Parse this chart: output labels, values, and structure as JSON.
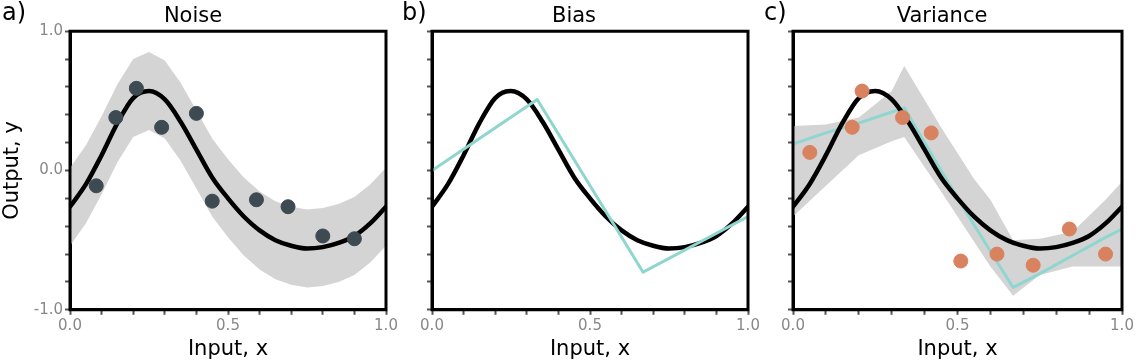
{
  "chart_data": [
    {
      "type": "line",
      "title": "Noise",
      "xlabel": "Input, x",
      "ylabel": "Output, y",
      "annotations": [
        "a)"
      ],
      "xlim": [
        0,
        1
      ],
      "ylim": [
        -1,
        1
      ],
      "xticks": [
        {
          "value": 0,
          "label": "0.0"
        },
        {
          "value": 0.1,
          "label": null
        },
        {
          "value": 0.2,
          "label": null
        },
        {
          "value": 0.3,
          "label": null
        },
        {
          "value": 0.4,
          "label": null
        },
        {
          "value": 0.5,
          "label": "0.5"
        },
        {
          "value": 0.6,
          "label": null
        },
        {
          "value": 0.7,
          "label": null
        },
        {
          "value": 0.8,
          "label": null
        },
        {
          "value": 0.9,
          "label": null
        },
        {
          "value": 1,
          "label": "1.0"
        }
      ],
      "yticks": [
        {
          "value": -1,
          "label": "-1.0"
        },
        {
          "value": -0.8,
          "label": null
        },
        {
          "value": -0.6,
          "label": null
        },
        {
          "value": -0.4,
          "label": null
        },
        {
          "value": -0.2,
          "label": null
        },
        {
          "value": 0,
          "label": "0.0"
        },
        {
          "value": 0.2,
          "label": null
        },
        {
          "value": 0.4,
          "label": null
        },
        {
          "value": 0.6,
          "label": null
        },
        {
          "value": 0.8,
          "label": null
        },
        {
          "value": 1,
          "label": "1.0"
        }
      ],
      "series": [
        {
          "color": "#000000",
          "x": [
            0,
            0.05,
            0.1,
            0.15,
            0.2,
            0.25,
            0.3,
            0.35,
            0.4,
            0.45,
            0.5,
            0.55,
            0.6,
            0.65,
            0.7,
            0.75,
            0.8,
            0.85,
            0.9,
            0.95,
            1
          ],
          "values": [
            -0.26,
            -0.1,
            0.11,
            0.34,
            0.52,
            0.57,
            0.51,
            0.35,
            0.15,
            -0.05,
            -0.2,
            -0.33,
            -0.43,
            -0.5,
            -0.54,
            -0.56,
            -0.55,
            -0.52,
            -0.47,
            -0.38,
            -0.26
          ],
          "lower": [
            -0.54,
            -0.38,
            -0.17,
            0.06,
            0.24,
            0.29,
            0.23,
            0.07,
            -0.13,
            -0.33,
            -0.48,
            -0.61,
            -0.71,
            -0.78,
            -0.82,
            -0.84,
            -0.83,
            -0.8,
            -0.75,
            -0.66,
            -0.54
          ],
          "upper": [
            0.02,
            0.18,
            0.39,
            0.62,
            0.8,
            0.85,
            0.79,
            0.63,
            0.43,
            0.23,
            0.08,
            -0.05,
            -0.15,
            -0.22,
            -0.26,
            -0.28,
            -0.27,
            -0.24,
            -0.19,
            -0.1,
            0.02
          ]
        },
        {
          "type": "scatter",
          "color": "#3d4a52",
          "marker": "circle",
          "x": [
            0.083,
            0.145,
            0.21,
            0.29,
            0.4,
            0.45,
            0.59,
            0.69,
            0.8,
            0.9
          ],
          "values": [
            -0.11,
            0.38,
            0.59,
            0.31,
            0.41,
            -0.22,
            -0.21,
            -0.26,
            -0.47,
            -0.49
          ]
        }
      ]
    },
    {
      "type": "line",
      "title": "Bias",
      "xlabel": "Input, x",
      "annotations": [
        "b)"
      ],
      "tick_labels": "x",
      "xlim": [
        0,
        1
      ],
      "ylim": [
        -1,
        1
      ],
      "xticks": [
        {
          "value": 0,
          "label": "0.0"
        },
        {
          "value": 0.1,
          "label": null
        },
        {
          "value": 0.2,
          "label": null
        },
        {
          "value": 0.3,
          "label": null
        },
        {
          "value": 0.4,
          "label": null
        },
        {
          "value": 0.5,
          "label": "0.5"
        },
        {
          "value": 0.6,
          "label": null
        },
        {
          "value": 0.7,
          "label": null
        },
        {
          "value": 0.8,
          "label": null
        },
        {
          "value": 0.9,
          "label": null
        },
        {
          "value": 1,
          "label": "1.0"
        }
      ],
      "yticks": [
        {
          "value": -1,
          "label": null
        },
        {
          "value": -0.8,
          "label": null
        },
        {
          "value": -0.6,
          "label": null
        },
        {
          "value": -0.4,
          "label": null
        },
        {
          "value": -0.2,
          "label": null
        },
        {
          "value": 0,
          "label": null
        },
        {
          "value": 0.2,
          "label": null
        },
        {
          "value": 0.4,
          "label": null
        },
        {
          "value": 0.6,
          "label": null
        },
        {
          "value": 0.8,
          "label": null
        },
        {
          "value": 1,
          "label": null
        }
      ],
      "series": [
        {
          "color": "#000000",
          "x": [
            0,
            0.05,
            0.1,
            0.15,
            0.2,
            0.25,
            0.3,
            0.35,
            0.4,
            0.45,
            0.5,
            0.55,
            0.6,
            0.65,
            0.7,
            0.75,
            0.8,
            0.85,
            0.9,
            0.95,
            1
          ],
          "values": [
            -0.26,
            -0.1,
            0.11,
            0.34,
            0.52,
            0.57,
            0.51,
            0.35,
            0.15,
            -0.05,
            -0.2,
            -0.33,
            -0.43,
            -0.5,
            -0.54,
            -0.56,
            -0.55,
            -0.52,
            -0.47,
            -0.38,
            -0.26
          ]
        },
        {
          "color": "#8fd6d0",
          "x": [
            0,
            0.333,
            0.668,
            1
          ],
          "values": [
            0,
            0.51,
            -0.73,
            -0.33
          ]
        }
      ]
    },
    {
      "type": "line",
      "title": "Variance",
      "xlabel": "Input, x",
      "annotations": [
        "c)"
      ],
      "tick_labels": "x",
      "xlim": [
        0,
        1
      ],
      "ylim": [
        -1,
        1
      ],
      "xticks": [
        {
          "value": 0,
          "label": "0.0"
        },
        {
          "value": 0.1,
          "label": null
        },
        {
          "value": 0.2,
          "label": null
        },
        {
          "value": 0.3,
          "label": null
        },
        {
          "value": 0.4,
          "label": null
        },
        {
          "value": 0.5,
          "label": "0.5"
        },
        {
          "value": 0.6,
          "label": null
        },
        {
          "value": 0.7,
          "label": null
        },
        {
          "value": 0.8,
          "label": null
        },
        {
          "value": 0.9,
          "label": null
        },
        {
          "value": 1,
          "label": "1.0"
        }
      ],
      "yticks": [
        {
          "value": -1,
          "label": null
        },
        {
          "value": -0.8,
          "label": null
        },
        {
          "value": -0.6,
          "label": null
        },
        {
          "value": -0.4,
          "label": null
        },
        {
          "value": -0.2,
          "label": null
        },
        {
          "value": 0,
          "label": null
        },
        {
          "value": 0.2,
          "label": null
        },
        {
          "value": 0.4,
          "label": null
        },
        {
          "value": 0.6,
          "label": null
        },
        {
          "value": 0.8,
          "label": null
        },
        {
          "value": 1,
          "label": null
        }
      ],
      "series": [
        {
          "color": "#8fd6d0",
          "x": [
            0,
            0.1,
            0.2,
            0.3,
            0.338,
            0.45,
            0.55,
            0.6,
            0.669,
            0.75,
            0.85,
            0.95,
            1
          ],
          "values": [
            0.19,
            0.27,
            0.34,
            0.42,
            0.45,
            0,
            -0.39,
            -0.58,
            -0.84,
            -0.74,
            -0.61,
            -0.48,
            -0.42
          ],
          "lower": [
            -0.33,
            -0.11,
            0.11,
            0.21,
            0.24,
            -0.15,
            -0.51,
            -0.69,
            -0.9,
            -0.75,
            -0.69,
            -0.69,
            -0.69
          ],
          "upper": [
            0.32,
            0.33,
            0.38,
            0.57,
            0.75,
            0.31,
            -0.06,
            -0.21,
            -0.5,
            -0.49,
            -0.44,
            -0.21,
            -0.08
          ]
        },
        {
          "color": "#000000",
          "x": [
            0,
            0.05,
            0.1,
            0.15,
            0.2,
            0.25,
            0.3,
            0.35,
            0.4,
            0.45,
            0.5,
            0.55,
            0.6,
            0.65,
            0.7,
            0.75,
            0.8,
            0.85,
            0.9,
            0.95,
            1
          ],
          "values": [
            -0.26,
            -0.1,
            0.11,
            0.34,
            0.52,
            0.57,
            0.51,
            0.35,
            0.15,
            -0.05,
            -0.2,
            -0.33,
            -0.43,
            -0.5,
            -0.54,
            -0.56,
            -0.55,
            -0.52,
            -0.47,
            -0.38,
            -0.26
          ]
        },
        {
          "type": "scatter",
          "color": "#d9825f",
          "marker": "circle",
          "x": [
            0.051,
            0.18,
            0.21,
            0.333,
            0.42,
            0.51,
            0.62,
            0.73,
            0.84,
            0.95
          ],
          "values": [
            0.13,
            0.31,
            0.57,
            0.38,
            0.27,
            -0.65,
            -0.6,
            -0.68,
            -0.42,
            -0.6
          ]
        }
      ]
    }
  ]
}
